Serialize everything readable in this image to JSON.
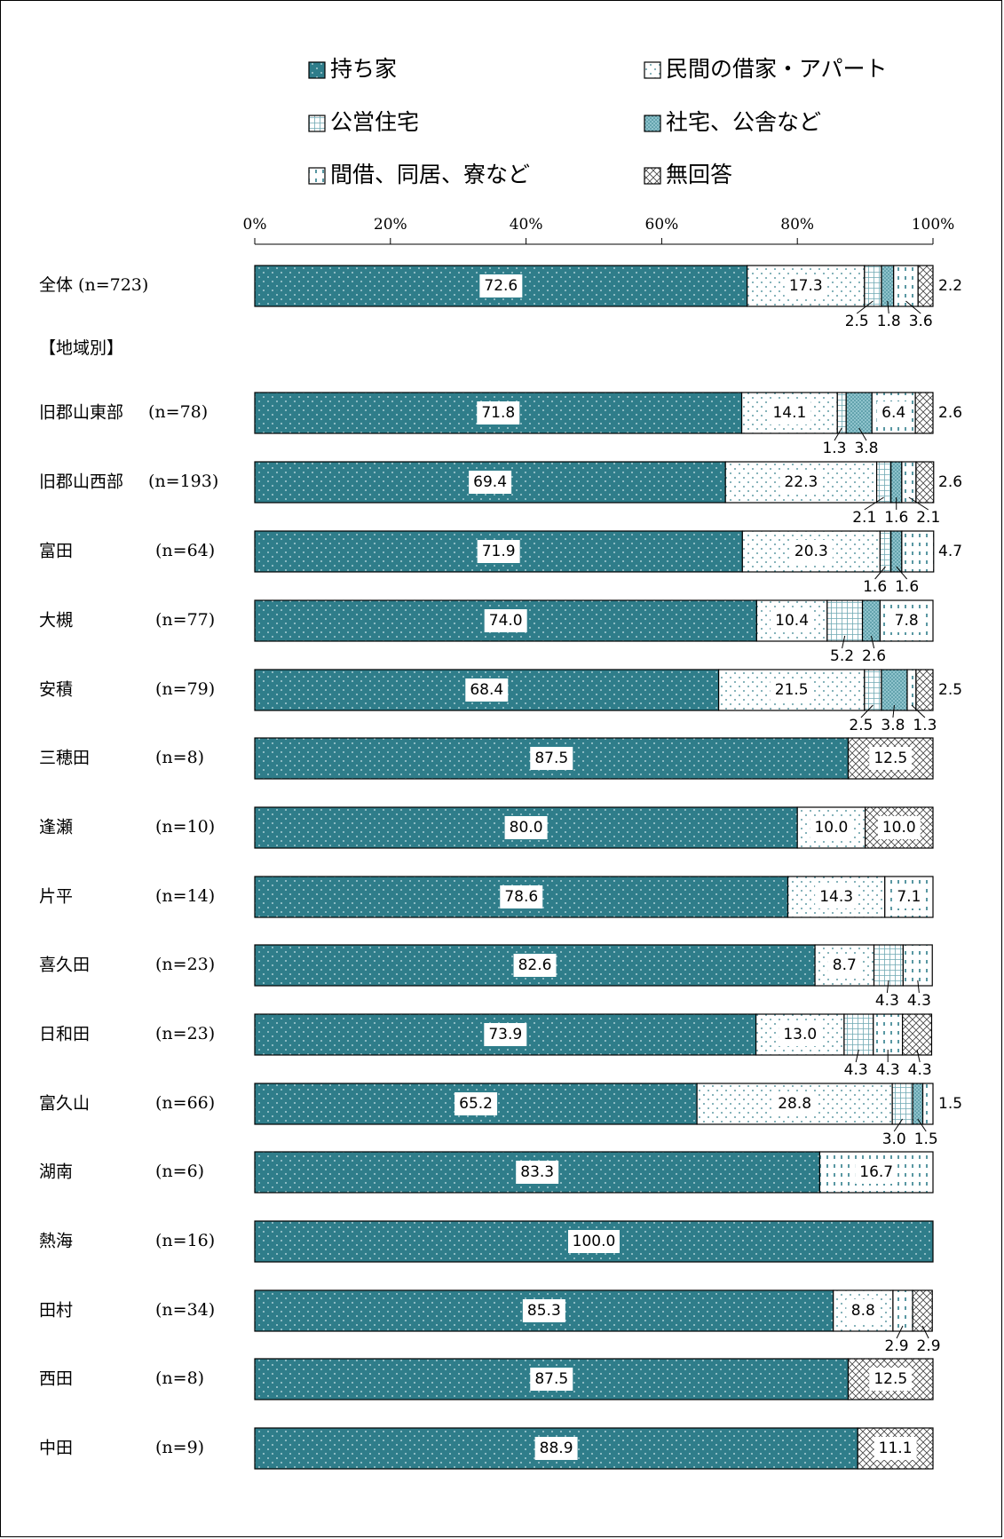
{
  "chart_data": {
    "type": "bar",
    "orientation": "horizontal",
    "stacked": "percent",
    "xlim": [
      0,
      100
    ],
    "x_ticks": [
      "0%",
      "20%",
      "40%",
      "60%",
      "80%",
      "100%"
    ],
    "series": [
      {
        "name": "持ち家",
        "color": "#2f7d8a",
        "pattern": "dots"
      },
      {
        "name": "民間の借家・アパート",
        "color": "#ffffff",
        "pattern": "dots-teal"
      },
      {
        "name": "公営住宅",
        "color": "#ffffff",
        "pattern": "grid"
      },
      {
        "name": "社宅、公舎など",
        "color": "#8fc3cc",
        "pattern": "dense"
      },
      {
        "name": "間借、同居、寮など",
        "color": "#ffffff",
        "pattern": "dashes"
      },
      {
        "name": "無回答",
        "color": "#ffffff",
        "pattern": "cross"
      }
    ],
    "section_label": "【地域別】",
    "rows": [
      {
        "name": "全体",
        "n": "(n=723)",
        "values": [
          72.6,
          17.3,
          2.5,
          1.8,
          3.6,
          2.2
        ]
      },
      {
        "name": "旧郡山東部",
        "n": "(n=78)",
        "values": [
          71.8,
          14.1,
          1.3,
          3.8,
          6.4,
          2.6
        ]
      },
      {
        "name": "旧郡山西部",
        "n": "(n=193)",
        "values": [
          69.4,
          22.3,
          2.1,
          1.6,
          2.1,
          2.6
        ]
      },
      {
        "name": "富田",
        "n": "(n=64)",
        "values": [
          71.9,
          20.3,
          1.6,
          1.6,
          4.7,
          0
        ]
      },
      {
        "name": "大槻",
        "n": "(n=77)",
        "values": [
          74.0,
          10.4,
          5.2,
          2.6,
          7.8,
          0
        ]
      },
      {
        "name": "安積",
        "n": "(n=79)",
        "values": [
          68.4,
          21.5,
          2.5,
          3.8,
          1.3,
          2.5
        ]
      },
      {
        "name": "三穂田",
        "n": "(n=8)",
        "values": [
          87.5,
          0,
          0,
          0,
          0,
          12.5
        ]
      },
      {
        "name": "逢瀬",
        "n": "(n=10)",
        "values": [
          80.0,
          10.0,
          0,
          0,
          0,
          10.0
        ]
      },
      {
        "name": "片平",
        "n": "(n=14)",
        "values": [
          78.6,
          14.3,
          0,
          0,
          7.1,
          0
        ]
      },
      {
        "name": "喜久田",
        "n": "(n=23)",
        "values": [
          82.6,
          8.7,
          4.3,
          0,
          4.3,
          0
        ]
      },
      {
        "name": "日和田",
        "n": "(n=23)",
        "values": [
          73.9,
          13.0,
          4.3,
          0,
          4.3,
          4.3
        ]
      },
      {
        "name": "富久山",
        "n": "(n=66)",
        "values": [
          65.2,
          28.8,
          3.0,
          1.5,
          1.5,
          0
        ]
      },
      {
        "name": "湖南",
        "n": "(n=6)",
        "values": [
          83.3,
          0,
          0,
          0,
          16.7,
          0
        ]
      },
      {
        "name": "熱海",
        "n": "(n=16)",
        "values": [
          100.0,
          0,
          0,
          0,
          0,
          0
        ]
      },
      {
        "name": "田村",
        "n": "(n=34)",
        "values": [
          85.3,
          8.8,
          0,
          0,
          2.9,
          2.9
        ]
      },
      {
        "name": "西田",
        "n": "(n=8)",
        "values": [
          87.5,
          0,
          0,
          0,
          0,
          12.5
        ]
      },
      {
        "name": "中田",
        "n": "(n=9)",
        "values": [
          88.9,
          0,
          0,
          0,
          0,
          11.1
        ]
      }
    ]
  }
}
